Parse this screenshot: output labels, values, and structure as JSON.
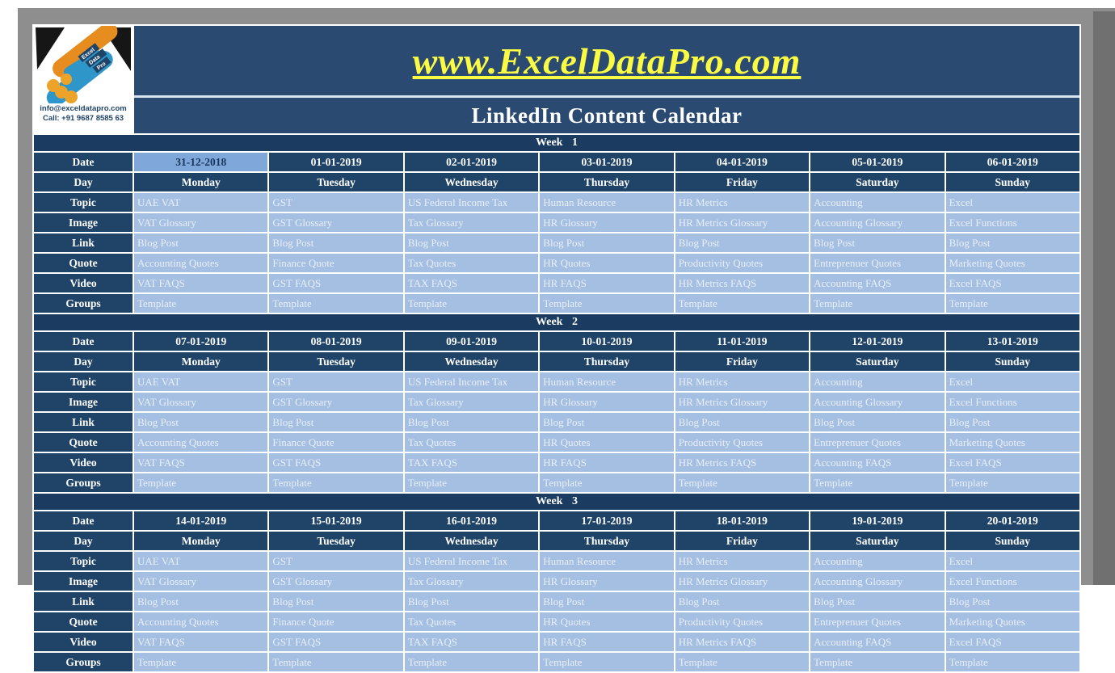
{
  "page": {
    "website_title": "www.ExcelDataPro.com",
    "calendar_title": "LinkedIn Content Calendar"
  },
  "logo": {
    "name": "Excel Data Pro handshake logo",
    "brand_lines": [
      "Excel",
      "Data",
      "Pro"
    ],
    "email": "info@exceldatapro.com",
    "phone": "Call: +91 9687 8585 63"
  },
  "row_labels": {
    "date": "Date",
    "day": "Day",
    "topic": "Topic",
    "image": "Image",
    "link": "Link",
    "quote": "Quote",
    "video": "Video",
    "groups": "Groups"
  },
  "days": [
    "Monday",
    "Tuesday",
    "Wednesday",
    "Thursday",
    "Friday",
    "Saturday",
    "Sunday"
  ],
  "weekly_content": {
    "topic": [
      "UAE VAT",
      "GST",
      "US Federal Income Tax",
      "Human Resource",
      "HR Metrics",
      "Accounting",
      "Excel"
    ],
    "image": [
      "VAT Glossary",
      "GST Glossary",
      "Tax Glossary",
      "HR Glossary",
      "HR Metrics Glossary",
      "Accounting Glossary",
      "Excel Functions"
    ],
    "link": [
      "Blog Post",
      "Blog Post",
      "Blog Post",
      "Blog Post",
      "Blog Post",
      "Blog Post",
      "Blog Post"
    ],
    "quote": [
      "Accounting Quotes",
      "Finance Quote",
      "Tax Quotes",
      "HR Quotes",
      "Productivity Quotes",
      "Entreprenuer Quotes",
      "Marketing Quotes"
    ],
    "video": [
      "VAT FAQS",
      "GST FAQS",
      "TAX FAQS",
      "HR FAQS",
      "HR Metrics FAQS",
      "Accounting FAQS",
      "Excel FAQS"
    ],
    "groups": [
      "Template",
      "Template",
      "Template",
      "Template",
      "Template",
      "Template",
      "Template"
    ]
  },
  "weeks": [
    {
      "label": "Week 1",
      "dates": [
        "31-12-2018",
        "01-01-2019",
        "02-01-2019",
        "03-01-2019",
        "04-01-2019",
        "05-01-2019",
        "06-01-2019"
      ],
      "selected_date_index": 0
    },
    {
      "label": "Week 2",
      "dates": [
        "07-01-2019",
        "08-01-2019",
        "09-01-2019",
        "10-01-2019",
        "11-01-2019",
        "12-01-2019",
        "13-01-2019"
      ],
      "selected_date_index": null
    },
    {
      "label": "Week 3",
      "dates": [
        "14-01-2019",
        "15-01-2019",
        "16-01-2019",
        "17-01-2019",
        "18-01-2019",
        "19-01-2019",
        "20-01-2019"
      ],
      "selected_date_index": null
    }
  ],
  "colors": {
    "banner_navy": "#2a4a72",
    "cell_navy": "#204467",
    "week_band_navy": "#1b3c60",
    "data_cell_blue": "#a4bfe2",
    "selected_cell_blue": "#7fa7d9",
    "title_yellow": "#fbfb44",
    "gridline_white": "#ffffff",
    "outer_gray": "#8e8e8e"
  }
}
